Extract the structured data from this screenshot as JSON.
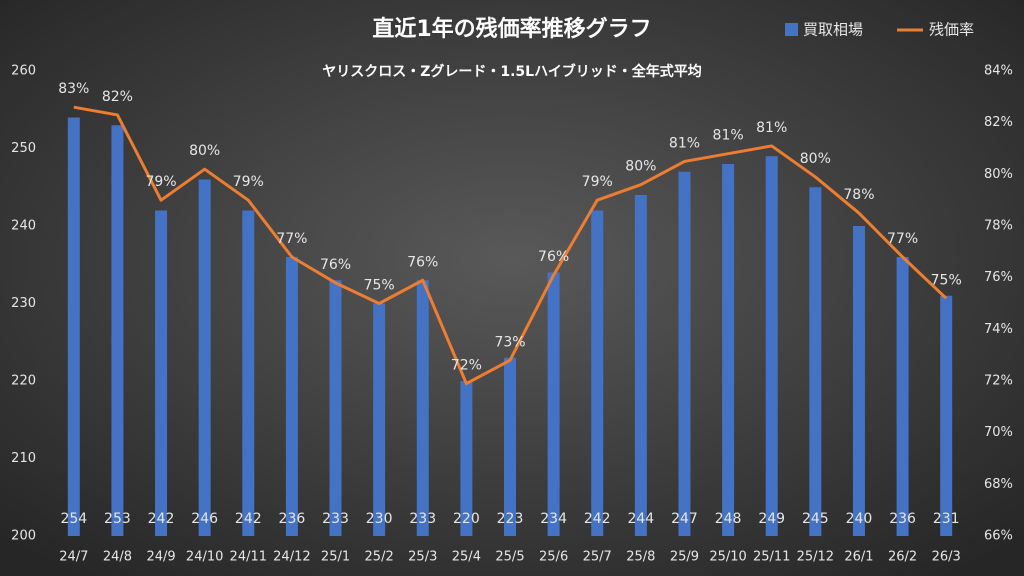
{
  "chart_data": {
    "type": "bar-line",
    "title": "直近1年の残価率推移グラフ",
    "subtitle": "ヤリスクロス・Zグレード・1.5Lハイブリッド・全年式平均",
    "categories": [
      "24/7",
      "24/8",
      "24/9",
      "24/10",
      "24/11",
      "24/12",
      "25/1",
      "25/2",
      "25/3",
      "25/4",
      "25/5",
      "25/6",
      "25/7",
      "25/8",
      "25/9",
      "25/10",
      "25/11",
      "25/12",
      "26/1",
      "26/2",
      "26/3"
    ],
    "series": [
      {
        "name": "買取相場",
        "color": "#4472c4",
        "type": "bar",
        "values": [
          254,
          253,
          242,
          246,
          242,
          236,
          233,
          230,
          233,
          220,
          223,
          234,
          242,
          244,
          247,
          248,
          249,
          245,
          240,
          236,
          231
        ]
      },
      {
        "name": "残価率",
        "color": "#ed7d31",
        "type": "line",
        "axis": "y2",
        "values": [
          82.6,
          82.3,
          79.0,
          80.2,
          79.0,
          76.8,
          75.8,
          75.0,
          75.9,
          71.9,
          72.8,
          76.1,
          79.0,
          79.6,
          80.5,
          80.8,
          81.1,
          79.9,
          78.5,
          76.8,
          75.2
        ],
        "value_labels": [
          "83%",
          "82%",
          "79%",
          "80%",
          "79%",
          "77%",
          "76%",
          "75%",
          "76%",
          "72%",
          "73%",
          "76%",
          "79%",
          "80%",
          "81%",
          "81%",
          "81%",
          "80%",
          "78%",
          "77%",
          "75%"
        ]
      }
    ],
    "ylim": [
      200,
      260
    ],
    "yticks": [
      200,
      210,
      220,
      230,
      240,
      250,
      260
    ],
    "y2lim": [
      66,
      84
    ],
    "y2ticks": [
      {
        "value": 66,
        "label": "66%"
      },
      {
        "value": 68,
        "label": "68%"
      },
      {
        "value": 70,
        "label": "70%"
      },
      {
        "value": 72,
        "label": "72%"
      },
      {
        "value": 74,
        "label": "74%"
      },
      {
        "value": 76,
        "label": "76%"
      },
      {
        "value": 78,
        "label": "78%"
      },
      {
        "value": 80,
        "label": "80%"
      },
      {
        "value": 82,
        "label": "82%"
      },
      {
        "value": 84,
        "label": "84%"
      }
    ],
    "grid": false,
    "legend": "top-right"
  }
}
